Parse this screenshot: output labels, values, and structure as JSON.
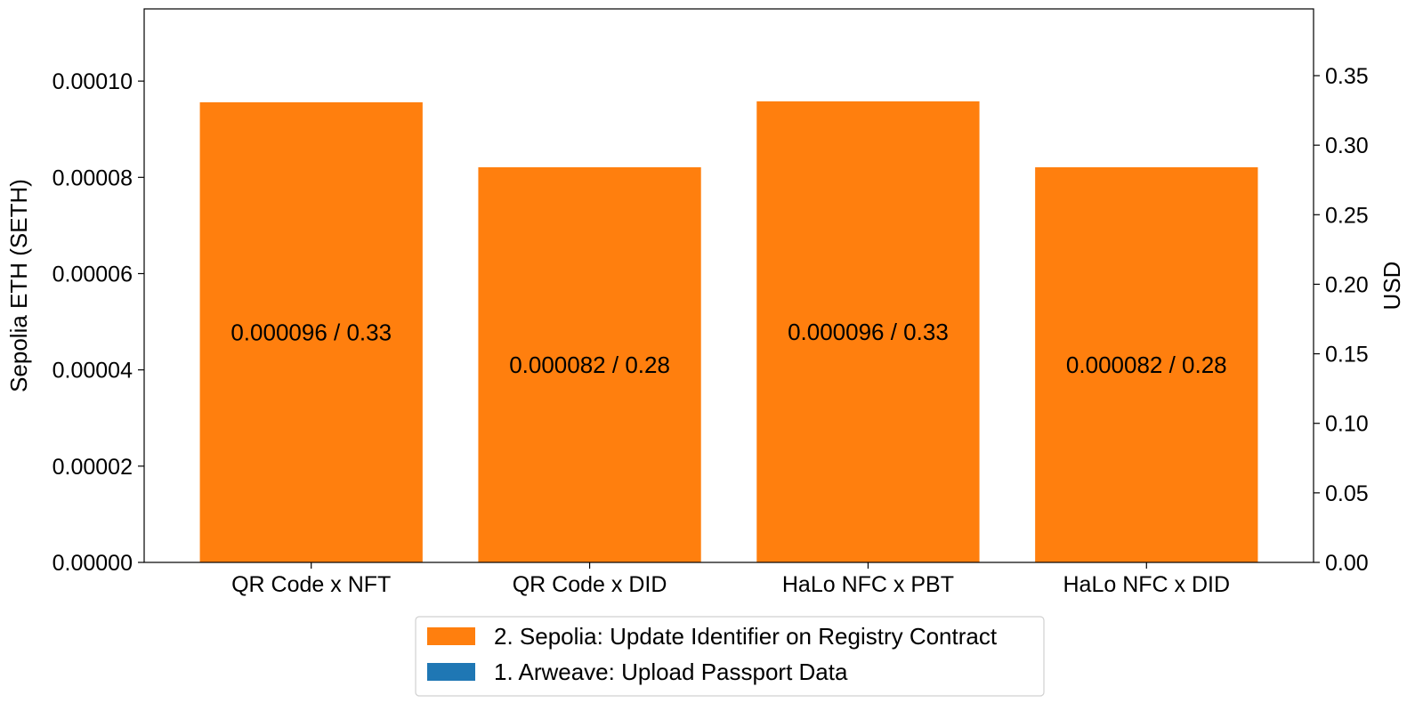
{
  "chart_data": {
    "type": "bar",
    "stacked": true,
    "categories": [
      "QR Code x NFT",
      "QR Code x DID",
      "HaLo NFC x PBT",
      "HaLo NFC x DID"
    ],
    "series": [
      {
        "name": "1. Arweave: Upload Passport Data",
        "color": "#1f77b4",
        "values": [
          0,
          0,
          0,
          0
        ]
      },
      {
        "name": "2. Sepolia: Update Identifier on Registry Contract",
        "color": "#ff7f0e",
        "values": [
          9.56e-05,
          8.21e-05,
          9.58e-05,
          8.21e-05
        ]
      }
    ],
    "data_labels": [
      "0.000096 / 0.33",
      "0.000082 / 0.28",
      "0.000096 / 0.33",
      "0.000082 / 0.28"
    ],
    "ylabel": "Sepolia ETH (SETH)",
    "ylim": [
      0,
      0.000115
    ],
    "yticks": [
      "0.00000",
      "0.00002",
      "0.00004",
      "0.00006",
      "0.00008",
      "0.00010"
    ],
    "ytick_values": [
      0,
      2e-05,
      4e-05,
      6e-05,
      8e-05,
      0.0001
    ],
    "y2label": "USD",
    "y2lim": [
      0,
      0.398
    ],
    "y2ticks": [
      "0.00",
      "0.05",
      "0.10",
      "0.15",
      "0.20",
      "0.25",
      "0.30",
      "0.35"
    ],
    "y2tick_values": [
      0,
      0.05,
      0.1,
      0.15,
      0.2,
      0.25,
      0.3,
      0.35
    ],
    "legend_entries": [
      {
        "label": "2. Sepolia: Update Identifier on Registry Contract",
        "color": "#ff7f0e"
      },
      {
        "label": "1. Arweave: Upload Passport Data",
        "color": "#1f77b4"
      }
    ],
    "legend_position": "bottom-center",
    "grid": false
  }
}
